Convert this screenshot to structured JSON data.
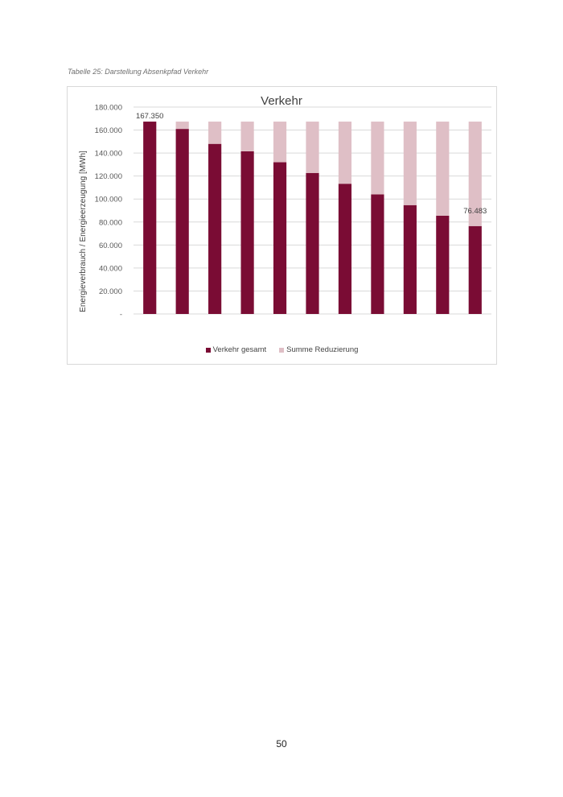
{
  "caption": "Tabelle 25: Darstellung Absenkpfad Verkehr",
  "page_number": "50",
  "colors": {
    "primary": "#7a0c34",
    "reduction": "#dfbfc6",
    "grid": "#d9d9d9",
    "text": "#595959"
  },
  "chart_data": {
    "type": "bar",
    "stacked": true,
    "title": "Verkehr",
    "xlabel": "",
    "ylabel": "Energieverbrauch / Energieerzeugung [MWh]",
    "ylim": [
      0,
      180000
    ],
    "yticks": [
      "-",
      "20.000",
      "40.000",
      "60.000",
      "80.000",
      "100.000",
      "120.000",
      "140.000",
      "160.000",
      "180.000"
    ],
    "categories": [
      "",
      "",
      "",
      "",
      "",
      "",
      "",
      "",
      "",
      "",
      ""
    ],
    "series": [
      {
        "name": "Verkehr gesamt",
        "values": [
          167350,
          161000,
          148000,
          141500,
          132000,
          122700,
          113300,
          104000,
          94700,
          85500,
          76483
        ]
      },
      {
        "name": "Summe Reduzierung",
        "values": [
          0,
          6350,
          19350,
          25850,
          35350,
          44650,
          54050,
          63350,
          72650,
          81850,
          90867
        ]
      }
    ],
    "data_labels": [
      {
        "index": 0,
        "text": "167.350"
      },
      {
        "index": 10,
        "text": "76.483"
      }
    ],
    "grid": true,
    "legend": "bottom"
  }
}
